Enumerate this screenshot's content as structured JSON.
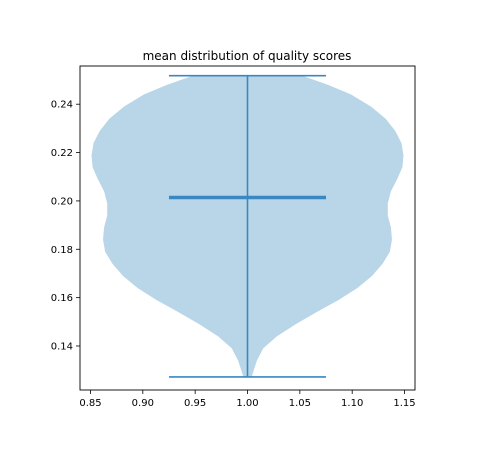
{
  "chart_data": {
    "type": "violin",
    "title": "mean distribution of quality scores",
    "xlabel": "",
    "ylabel": "",
    "xlim": [
      0.84,
      1.16
    ],
    "ylim": [
      0.1218,
      0.2558
    ],
    "x_ticks": [
      "0.85",
      "0.90",
      "0.95",
      "1.00",
      "1.05",
      "1.10",
      "1.15"
    ],
    "y_ticks": [
      "0.14",
      "0.16",
      "0.18",
      "0.20",
      "0.22",
      "0.24"
    ],
    "grid": false,
    "legend": "none",
    "violin": {
      "position": 1.0,
      "body_color": "#b9d5e8",
      "line_color": "#3a87c1",
      "min": 0.1272,
      "max": 0.2518,
      "mean": 0.2014,
      "cap_halfwidth": 0.075,
      "profile": [
        {
          "y": 0.1272,
          "halfwidth": 0.004
        },
        {
          "y": 0.13,
          "halfwidth": 0.006
        },
        {
          "y": 0.134,
          "halfwidth": 0.009
        },
        {
          "y": 0.139,
          "halfwidth": 0.015
        },
        {
          "y": 0.144,
          "halfwidth": 0.028
        },
        {
          "y": 0.149,
          "halfwidth": 0.046
        },
        {
          "y": 0.154,
          "halfwidth": 0.066
        },
        {
          "y": 0.159,
          "halfwidth": 0.087
        },
        {
          "y": 0.164,
          "halfwidth": 0.105
        },
        {
          "y": 0.169,
          "halfwidth": 0.119
        },
        {
          "y": 0.174,
          "halfwidth": 0.129
        },
        {
          "y": 0.179,
          "halfwidth": 0.136
        },
        {
          "y": 0.184,
          "halfwidth": 0.138
        },
        {
          "y": 0.189,
          "halfwidth": 0.137
        },
        {
          "y": 0.194,
          "halfwidth": 0.134
        },
        {
          "y": 0.199,
          "halfwidth": 0.134
        },
        {
          "y": 0.204,
          "halfwidth": 0.137
        },
        {
          "y": 0.209,
          "halfwidth": 0.143
        },
        {
          "y": 0.214,
          "halfwidth": 0.148
        },
        {
          "y": 0.219,
          "halfwidth": 0.149
        },
        {
          "y": 0.224,
          "halfwidth": 0.147
        },
        {
          "y": 0.229,
          "halfwidth": 0.141
        },
        {
          "y": 0.234,
          "halfwidth": 0.132
        },
        {
          "y": 0.239,
          "halfwidth": 0.118
        },
        {
          "y": 0.244,
          "halfwidth": 0.099
        },
        {
          "y": 0.248,
          "halfwidth": 0.077
        },
        {
          "y": 0.2518,
          "halfwidth": 0.052
        }
      ]
    }
  }
}
